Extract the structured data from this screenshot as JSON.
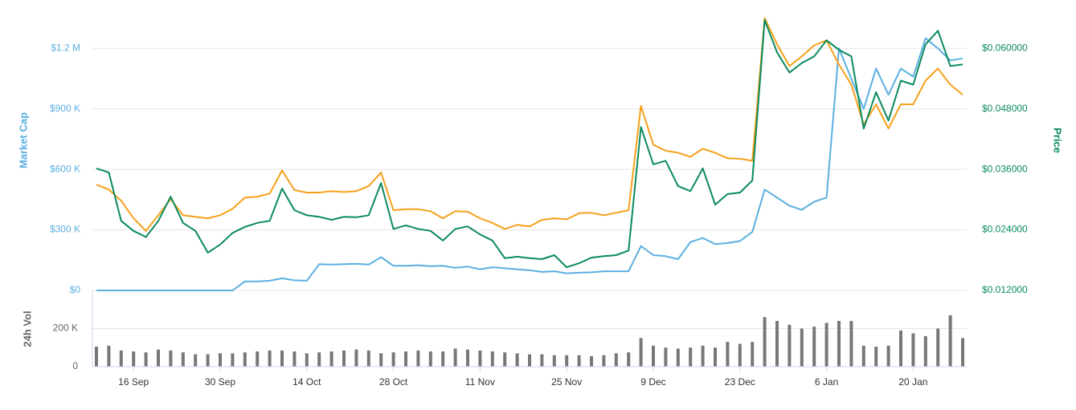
{
  "chart_data": {
    "type": "line",
    "categories": [
      null,
      null,
      null,
      "16 Sep",
      null,
      null,
      null,
      null,
      null,
      null,
      "30 Sep",
      null,
      null,
      null,
      null,
      null,
      null,
      "14 Oct",
      null,
      null,
      null,
      null,
      null,
      null,
      "28 Oct",
      null,
      null,
      null,
      null,
      null,
      null,
      "11 Nov",
      null,
      null,
      null,
      null,
      null,
      null,
      "25 Nov",
      null,
      null,
      null,
      null,
      null,
      null,
      "9 Dec",
      null,
      null,
      null,
      null,
      null,
      null,
      "23 Dec",
      null,
      null,
      null,
      null,
      null,
      null,
      "6 Jan",
      null,
      null,
      null,
      null,
      null,
      null,
      "20 Jan",
      null,
      null,
      null,
      null
    ],
    "y_label": "Market Cap",
    "y2_label": "Price",
    "ylim": [
      0,
      1380000
    ],
    "yticks": [
      {
        "value": 0,
        "label": "$0"
      },
      {
        "value": 300000,
        "label": "$300 K"
      },
      {
        "value": 600000,
        "label": "$600 K"
      },
      {
        "value": 900000,
        "label": "$900 K"
      },
      {
        "value": 1200000,
        "label": "$1.2 M"
      }
    ],
    "y2lim": [
      0.012,
      0.0672
    ],
    "y2ticks": [
      {
        "value": 0.012,
        "label": "$0.012000"
      },
      {
        "value": 0.024,
        "label": "$0.024000"
      },
      {
        "value": 0.036,
        "label": "$0.036000"
      },
      {
        "value": 0.048,
        "label": "$0.048000"
      },
      {
        "value": 0.06,
        "label": "$0.060000"
      }
    ],
    "grid": true,
    "series": [
      {
        "name": "Market Cap",
        "color": "#5aafe0",
        "axis": "y",
        "values": [
          0,
          0,
          0,
          0,
          0,
          0,
          0,
          0,
          0,
          0,
          0,
          0,
          45000,
          45000,
          48000,
          60000,
          50000,
          48000,
          130000,
          128000,
          130000,
          132000,
          128000,
          165000,
          122000,
          122000,
          125000,
          120000,
          122000,
          112000,
          118000,
          105000,
          115000,
          110000,
          105000,
          100000,
          92000,
          95000,
          85000,
          88000,
          90000,
          95000,
          95000,
          95000,
          220000,
          175000,
          170000,
          155000,
          240000,
          260000,
          230000,
          235000,
          245000,
          290000,
          500000,
          460000,
          420000,
          400000,
          440000,
          460000,
          1200000,
          1050000,
          900000,
          1100000,
          970000,
          1100000,
          1060000,
          1250000,
          1200000,
          1140000,
          1150000
        ]
      },
      {
        "color": "#f5a01a",
        "axis": "y2",
        "values": [
          0.033,
          0.032,
          0.0298,
          0.0263,
          0.0238,
          0.0269,
          0.0301,
          0.0269,
          0.0266,
          0.0263,
          0.0269,
          0.0282,
          0.0304,
          0.0306,
          0.0312,
          0.0358,
          0.0319,
          0.0314,
          0.0314,
          0.0317,
          0.0315,
          0.0317,
          0.0327,
          0.0354,
          0.0279,
          0.0281,
          0.0281,
          0.0277,
          0.0263,
          0.0277,
          0.0276,
          0.0263,
          0.0254,
          0.0242,
          0.025,
          0.0247,
          0.026,
          0.0263,
          0.0261,
          0.0273,
          0.0274,
          0.0269,
          0.0274,
          0.0279,
          0.0486,
          0.0409,
          0.0397,
          0.0393,
          0.0385,
          0.0401,
          0.0393,
          0.0382,
          0.0381,
          0.0377,
          0.066,
          0.0608,
          0.0565,
          0.0584,
          0.0606,
          0.0616,
          0.0568,
          0.0528,
          0.0449,
          0.0489,
          0.0441,
          0.0489,
          0.0489,
          0.0536,
          0.056,
          0.0528,
          0.0508
        ]
      },
      {
        "name": "Price",
        "color": "#0a8a5e",
        "axis": "y2",
        "values": [
          0.0362,
          0.0354,
          0.0258,
          0.0238,
          0.0226,
          0.0258,
          0.0306,
          0.0254,
          0.0238,
          0.0195,
          0.0211,
          0.0234,
          0.0246,
          0.0254,
          0.0258,
          0.0322,
          0.0279,
          0.0269,
          0.0266,
          0.026,
          0.0266,
          0.0265,
          0.0269,
          0.0333,
          0.0242,
          0.0249,
          0.0242,
          0.0238,
          0.0219,
          0.0242,
          0.0247,
          0.0231,
          0.0219,
          0.0184,
          0.0187,
          0.0184,
          0.0182,
          0.019,
          0.0166,
          0.0174,
          0.0185,
          0.0188,
          0.019,
          0.0199,
          0.0444,
          0.037,
          0.0377,
          0.0327,
          0.0317,
          0.0362,
          0.029,
          0.0311,
          0.0314,
          0.0338,
          0.0656,
          0.0592,
          0.0552,
          0.0571,
          0.0584,
          0.0616,
          0.0597,
          0.0584,
          0.0441,
          0.0513,
          0.0457,
          0.0536,
          0.0528,
          0.0608,
          0.0635,
          0.0565,
          0.0568
        ]
      }
    ],
    "volume": {
      "type": "bar",
      "label": "24h Vol",
      "color": "#777777",
      "ylim": [
        0,
        400000
      ],
      "yticks": [
        0,
        {
          "value": 200000,
          "label": "200 K"
        }
      ],
      "values": [
        105000,
        110000,
        85000,
        80000,
        75000,
        90000,
        85000,
        75000,
        65000,
        65000,
        70000,
        70000,
        75000,
        80000,
        85000,
        85000,
        80000,
        70000,
        75000,
        80000,
        85000,
        90000,
        85000,
        70000,
        75000,
        80000,
        85000,
        80000,
        80000,
        95000,
        90000,
        85000,
        80000,
        75000,
        70000,
        65000,
        65000,
        60000,
        60000,
        60000,
        55000,
        60000,
        70000,
        75000,
        150000,
        110000,
        100000,
        95000,
        100000,
        110000,
        100000,
        130000,
        120000,
        130000,
        260000,
        240000,
        220000,
        200000,
        210000,
        230000,
        240000,
        240000,
        110000,
        105000,
        110000,
        190000,
        175000,
        160000,
        200000,
        270000,
        150000
      ]
    }
  }
}
